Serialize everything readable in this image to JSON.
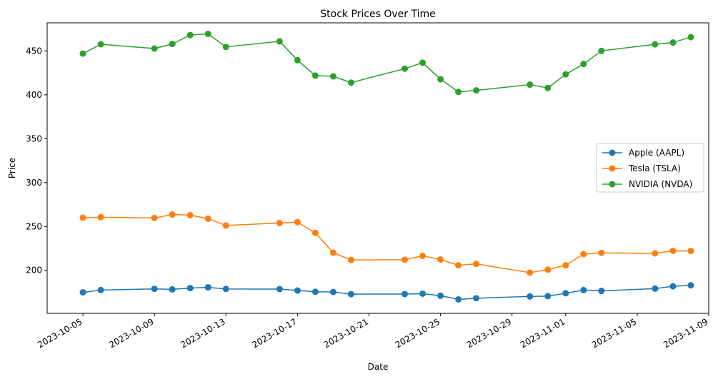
{
  "chart_data": {
    "type": "line",
    "title": "Stock Prices Over Time",
    "xlabel": "Date",
    "ylabel": "Price",
    "x_is_date": true,
    "xlim": [
      "2023-10-03",
      "2023-11-09"
    ],
    "ylim": [
      151,
      482
    ],
    "x_ticks": [
      "2023-10-05",
      "2023-10-09",
      "2023-10-13",
      "2023-10-17",
      "2023-10-21",
      "2023-10-25",
      "2023-10-29",
      "2023-11-01",
      "2023-11-05",
      "2023-11-09"
    ],
    "y_ticks": [
      200,
      250,
      300,
      350,
      400,
      450
    ],
    "grid": false,
    "legend_position": "center-right",
    "x": [
      "2023-10-05",
      "2023-10-06",
      "2023-10-09",
      "2023-10-10",
      "2023-10-11",
      "2023-10-12",
      "2023-10-13",
      "2023-10-16",
      "2023-10-17",
      "2023-10-18",
      "2023-10-19",
      "2023-10-20",
      "2023-10-23",
      "2023-10-24",
      "2023-10-25",
      "2023-10-26",
      "2023-10-27",
      "2023-10-30",
      "2023-10-31",
      "2023-11-01",
      "2023-11-02",
      "2023-11-03",
      "2023-11-06",
      "2023-11-07",
      "2023-11-08"
    ],
    "series": [
      {
        "name": "Apple (AAPL)",
        "color": "#1f77b4",
        "values": [
          174.9,
          177.5,
          178.9,
          178.3,
          179.8,
          180.6,
          178.8,
          178.6,
          177.0,
          175.6,
          175.3,
          172.9,
          173.0,
          173.4,
          171.1,
          166.9,
          168.2,
          170.3,
          170.6,
          173.9,
          177.5,
          176.6,
          179.2,
          181.8,
          182.9
        ]
      },
      {
        "name": "Tesla (TSLA)",
        "color": "#ff7f0e",
        "values": [
          260.0,
          260.5,
          259.7,
          263.6,
          262.9,
          258.9,
          251.1,
          253.9,
          254.9,
          242.7,
          220.1,
          211.9,
          212.1,
          216.5,
          212.4,
          205.8,
          207.3,
          197.4,
          200.8,
          205.7,
          218.5,
          219.9,
          219.3,
          222.2,
          222.1
        ]
      },
      {
        "name": "NVIDIA (NVDA)",
        "color": "#2ca02c",
        "values": [
          446.9,
          457.6,
          452.7,
          457.9,
          468.1,
          469.4,
          454.6,
          460.9,
          439.4,
          421.9,
          421.0,
          413.9,
          429.8,
          436.6,
          417.8,
          403.3,
          405.0,
          411.6,
          407.8,
          423.3,
          435.1,
          450.1,
          457.5,
          459.6,
          465.7
        ]
      }
    ]
  }
}
